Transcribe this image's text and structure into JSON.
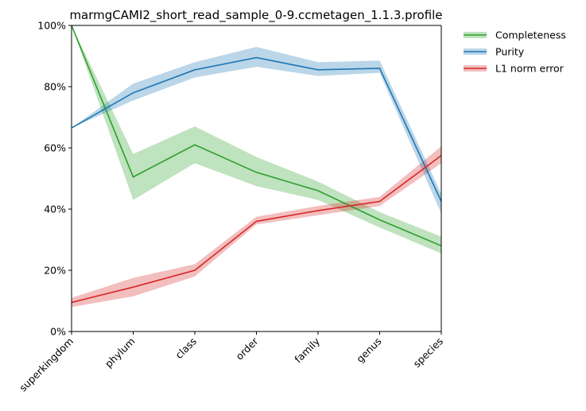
{
  "chart_data": {
    "type": "line",
    "title": "marmgCAMI2_short_read_sample_0-9.ccmetagen_1.1.3.profile",
    "categories": [
      "superkingdom",
      "phylum",
      "class",
      "order",
      "family",
      "genus",
      "species"
    ],
    "ylim": [
      0,
      100
    ],
    "yticks": [
      "0%",
      "20%",
      "40%",
      "60%",
      "80%",
      "100%"
    ],
    "grid": false,
    "legend_position": "outside-top-right",
    "series": [
      {
        "name": "Completeness",
        "color": "#2ca02c",
        "values": [
          100,
          50.5,
          61,
          52,
          46,
          36.5,
          28
        ],
        "lower": [
          100,
          43,
          55,
          47.5,
          43,
          34,
          25.5
        ],
        "upper": [
          100,
          58,
          67,
          57,
          49,
          39,
          31
        ]
      },
      {
        "name": "Purity",
        "color": "#1f77b4",
        "values": [
          66.5,
          78,
          85.5,
          89.5,
          85.5,
          86,
          42.5
        ],
        "lower": [
          66.5,
          75.5,
          83,
          86.5,
          83.5,
          84.5,
          38.5
        ],
        "upper": [
          66.5,
          81,
          88,
          93,
          88,
          88.5,
          45
        ]
      },
      {
        "name": "L1 norm error",
        "color": "#d62728",
        "values": [
          9.5,
          14.5,
          20,
          36,
          39.5,
          42.5,
          57.5
        ],
        "lower": [
          8,
          11.5,
          18,
          35,
          38,
          41,
          55
        ],
        "upper": [
          11,
          17.5,
          22,
          37.5,
          41,
          44,
          60.5
        ]
      }
    ]
  }
}
